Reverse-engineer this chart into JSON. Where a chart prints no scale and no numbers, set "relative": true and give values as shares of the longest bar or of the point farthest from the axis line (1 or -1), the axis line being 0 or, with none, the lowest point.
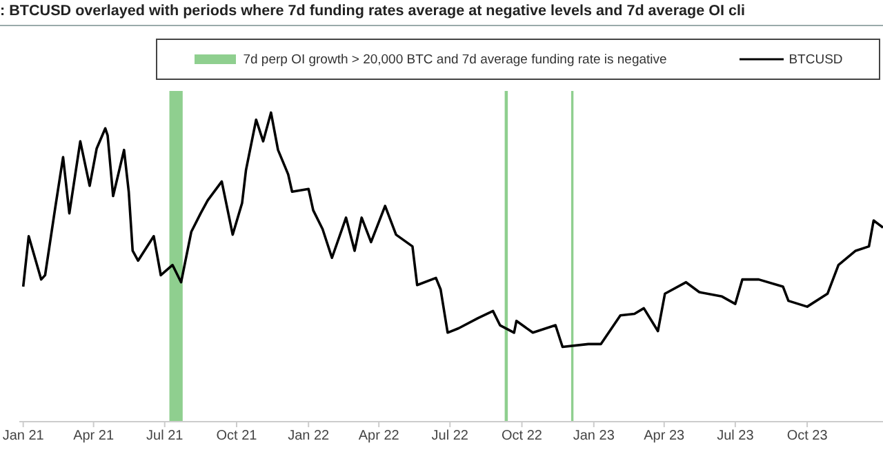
{
  "chart_data": {
    "type": "line",
    "title": ": BTCUSD overlayed with periods where 7d funding rates average at negative levels and 7d average OI cli",
    "relative": true,
    "legend": "top",
    "grid": false,
    "marker": "none",
    "line_style": "solid",
    "xlim": [
      "2020-12-27",
      "2024-01-06"
    ],
    "xticks": [
      {
        "value": "2021-01-01",
        "label": "Jan 21"
      },
      {
        "value": "2021-04-01",
        "label": "Apr 21"
      },
      {
        "value": "2021-07-01",
        "label": "Jul 21"
      },
      {
        "value": "2021-10-01",
        "label": "Oct 21"
      },
      {
        "value": "2022-01-01",
        "label": "Jan 22"
      },
      {
        "value": "2022-04-01",
        "label": "Apr 22"
      },
      {
        "value": "2022-07-01",
        "label": "Jul 22"
      },
      {
        "value": "2022-10-01",
        "label": "Oct 22"
      },
      {
        "value": "2023-01-01",
        "label": "Jan 23"
      },
      {
        "value": "2023-04-01",
        "label": "Apr 23"
      },
      {
        "value": "2023-07-01",
        "label": "Jul 23"
      },
      {
        "value": "2023-10-01",
        "label": "Oct 23"
      }
    ],
    "bands": [
      {
        "axis": "x",
        "from": "2021-07-07",
        "to": "2021-07-24",
        "label": "7d perp OI growth > 20,000 BTC and 7d average funding rate is negative",
        "color": "#8fcf8f"
      },
      {
        "axis": "x",
        "from": "2022-09-09",
        "to": "2022-09-13",
        "color": "#8fcf8f"
      },
      {
        "axis": "x",
        "from": "2022-12-03",
        "to": "2022-12-06",
        "color": "#8fcf8f"
      }
    ],
    "x": [
      "2021-01-01",
      "2021-01-08",
      "2021-01-24",
      "2021-01-29",
      "2021-02-11",
      "2021-02-21",
      "2021-03-01",
      "2021-03-15",
      "2021-03-27",
      "2021-04-05",
      "2021-04-16",
      "2021-04-19",
      "2021-04-26",
      "2021-05-10",
      "2021-05-16",
      "2021-05-21",
      "2021-05-28",
      "2021-06-17",
      "2021-06-26",
      "2021-07-11",
      "2021-07-22",
      "2021-08-04",
      "2021-08-16",
      "2021-08-25",
      "2021-09-12",
      "2021-09-26",
      "2021-10-08",
      "2021-10-13",
      "2021-10-26",
      "2021-11-04",
      "2021-11-14",
      "2021-11-23",
      "2021-12-06",
      "2021-12-11",
      "2022-01-01",
      "2022-01-07",
      "2022-01-19",
      "2022-01-31",
      "2022-02-18",
      "2022-03-01",
      "2022-03-10",
      "2022-03-22",
      "2022-04-09",
      "2022-04-23",
      "2022-05-14",
      "2022-05-20",
      "2022-06-13",
      "2022-06-19",
      "2022-06-28",
      "2022-07-12",
      "2022-08-06",
      "2022-08-25",
      "2022-09-03",
      "2022-09-21",
      "2022-09-24",
      "2022-10-15",
      "2022-11-13",
      "2022-11-22",
      "2022-12-25",
      "2023-01-10",
      "2023-02-04",
      "2023-02-22",
      "2023-03-06",
      "2023-03-24",
      "2023-04-02",
      "2023-04-29",
      "2023-05-16",
      "2023-06-14",
      "2023-07-01",
      "2023-07-10",
      "2023-07-31",
      "2023-08-31",
      "2023-09-07",
      "2023-10-01",
      "2023-10-27",
      "2023-11-10",
      "2023-12-02",
      "2023-12-19",
      "2023-12-25",
      "2024-01-06"
    ],
    "series": [
      {
        "name": "BTCUSD",
        "color": "#000000",
        "values": [
          0.437,
          0.6,
          0.46,
          0.474,
          0.693,
          0.856,
          0.674,
          0.907,
          0.763,
          0.884,
          0.949,
          0.926,
          0.73,
          0.879,
          0.744,
          0.553,
          0.521,
          0.6,
          0.474,
          0.507,
          0.451,
          0.614,
          0.674,
          0.716,
          0.777,
          0.605,
          0.707,
          0.814,
          0.977,
          0.907,
          1,
          0.879,
          0.8,
          0.744,
          0.753,
          0.684,
          0.623,
          0.53,
          0.66,
          0.553,
          0.66,
          0.581,
          0.698,
          0.605,
          0.567,
          0.442,
          0.465,
          0.428,
          0.288,
          0.302,
          0.335,
          0.358,
          0.312,
          0.288,
          0.326,
          0.288,
          0.312,
          0.242,
          0.251,
          0.251,
          0.344,
          0.349,
          0.367,
          0.293,
          0.414,
          0.451,
          0.419,
          0.405,
          0.381,
          0.46,
          0.46,
          0.437,
          0.391,
          0.372,
          0.414,
          0.507,
          0.553,
          0.567,
          0.651,
          0.628
        ]
      }
    ]
  }
}
